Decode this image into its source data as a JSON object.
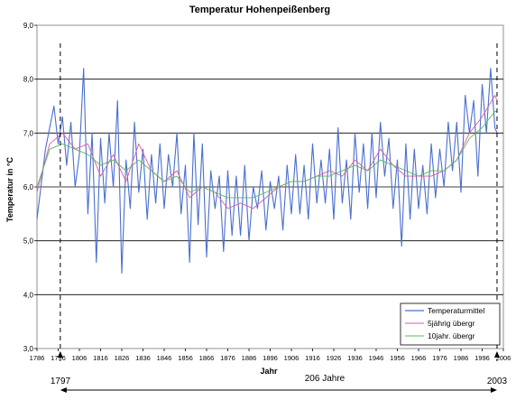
{
  "chart_data": {
    "type": "line",
    "title": "Temperatur  Hohenpeißenberg",
    "xlabel": "Jahr",
    "ylabel": "Temperatur in °C",
    "ylim": [
      3.0,
      9.0
    ],
    "xlim": [
      1786,
      2006
    ],
    "y_ticks": [
      "3,0",
      "4,0",
      "5,0",
      "6,0",
      "7,0",
      "8,0",
      "9,0"
    ],
    "x_ticks": [
      "1786",
      "1796",
      "1806",
      "1816",
      "1826",
      "1836",
      "1846",
      "1856",
      "1866",
      "1876",
      "1886",
      "1896",
      "1906",
      "1916",
      "1926",
      "1936",
      "1946",
      "1956",
      "1966",
      "1976",
      "1986",
      "1996",
      "2006"
    ],
    "grid": "horizontal",
    "legend_position": "bottom-right",
    "colors": {
      "temperaturmittel": "#4a6fd0",
      "fuenfjahr": "#e05aa0",
      "zehnjahr": "#5ab85a"
    },
    "series": [
      {
        "name": "Temperaturmittel",
        "x": [
          1786,
          1790,
          1794,
          1796,
          1798,
          1800,
          1802,
          1804,
          1806,
          1808,
          1810,
          1812,
          1814,
          1816,
          1818,
          1820,
          1822,
          1824,
          1826,
          1828,
          1830,
          1832,
          1834,
          1836,
          1838,
          1840,
          1842,
          1844,
          1846,
          1848,
          1850,
          1852,
          1854,
          1856,
          1858,
          1860,
          1862,
          1864,
          1866,
          1868,
          1870,
          1872,
          1874,
          1876,
          1878,
          1880,
          1882,
          1884,
          1886,
          1888,
          1890,
          1892,
          1894,
          1896,
          1898,
          1900,
          1902,
          1904,
          1906,
          1908,
          1910,
          1912,
          1914,
          1916,
          1918,
          1920,
          1922,
          1924,
          1926,
          1928,
          1930,
          1932,
          1934,
          1936,
          1938,
          1940,
          1942,
          1944,
          1946,
          1948,
          1950,
          1952,
          1954,
          1956,
          1958,
          1960,
          1962,
          1964,
          1966,
          1968,
          1970,
          1972,
          1974,
          1976,
          1978,
          1980,
          1982,
          1984,
          1986,
          1988,
          1990,
          1992,
          1994,
          1996,
          1998,
          2000,
          2002,
          2003
        ],
        "values": [
          5.4,
          6.7,
          7.5,
          6.8,
          7.3,
          6.4,
          7.2,
          6.0,
          6.6,
          8.2,
          5.5,
          7.0,
          4.6,
          6.9,
          5.7,
          7.0,
          6.0,
          7.6,
          4.4,
          6.5,
          5.6,
          7.2,
          5.9,
          6.7,
          5.4,
          6.6,
          5.7,
          6.8,
          5.6,
          6.6,
          6.0,
          7.0,
          5.5,
          6.4,
          4.6,
          7.0,
          5.3,
          6.8,
          4.7,
          6.3,
          5.6,
          6.2,
          4.8,
          6.3,
          5.1,
          6.2,
          5.1,
          6.4,
          5.0,
          6.0,
          5.6,
          6.3,
          5.2,
          6.1,
          5.6,
          6.2,
          5.2,
          6.4,
          5.5,
          6.6,
          5.5,
          6.4,
          5.4,
          6.8,
          5.7,
          6.5,
          5.7,
          6.7,
          5.4,
          7.1,
          5.7,
          6.5,
          5.4,
          7.0,
          5.9,
          6.8,
          5.6,
          7.0,
          5.8,
          7.2,
          6.2,
          6.9,
          5.6,
          6.5,
          4.9,
          6.8,
          5.4,
          6.7,
          5.6,
          6.4,
          5.5,
          6.8,
          5.8,
          6.7,
          6.0,
          7.2,
          6.3,
          7.2,
          5.9,
          7.7,
          7.0,
          7.6,
          6.2,
          7.9,
          7.0,
          8.2,
          7.1,
          7.0
        ]
      },
      {
        "name": "5jährig übergr",
        "x": [
          1786,
          1792,
          1798,
          1804,
          1810,
          1816,
          1822,
          1828,
          1834,
          1840,
          1846,
          1852,
          1858,
          1864,
          1870,
          1876,
          1882,
          1888,
          1894,
          1900,
          1906,
          1912,
          1918,
          1924,
          1930,
          1936,
          1942,
          1948,
          1954,
          1960,
          1966,
          1972,
          1978,
          1984,
          1990,
          1996,
          2002,
          2003
        ],
        "values": [
          5.9,
          6.8,
          7.0,
          6.7,
          6.8,
          6.2,
          6.6,
          6.1,
          6.8,
          6.3,
          6.1,
          6.3,
          5.8,
          6.0,
          5.9,
          5.6,
          5.7,
          5.6,
          5.8,
          6.0,
          6.1,
          6.1,
          6.2,
          6.3,
          6.2,
          6.5,
          6.3,
          6.7,
          6.4,
          6.2,
          6.2,
          6.2,
          6.3,
          6.5,
          7.0,
          7.3,
          7.7,
          7.6
        ]
      },
      {
        "name": "10jahr. übergr",
        "x": [
          1786,
          1792,
          1798,
          1804,
          1810,
          1816,
          1822,
          1828,
          1834,
          1840,
          1846,
          1852,
          1858,
          1864,
          1870,
          1876,
          1882,
          1888,
          1894,
          1900,
          1906,
          1912,
          1918,
          1924,
          1930,
          1936,
          1942,
          1948,
          1954,
          1960,
          1966,
          1972,
          1978,
          1984,
          1990,
          1996,
          2002,
          2003
        ],
        "values": [
          6.0,
          6.7,
          6.8,
          6.7,
          6.6,
          6.4,
          6.5,
          6.3,
          6.5,
          6.3,
          6.1,
          6.2,
          5.9,
          6.0,
          5.9,
          5.8,
          5.8,
          5.8,
          5.9,
          6.0,
          6.1,
          6.1,
          6.2,
          6.2,
          6.3,
          6.4,
          6.3,
          6.5,
          6.4,
          6.3,
          6.2,
          6.3,
          6.3,
          6.5,
          6.9,
          7.1,
          7.4,
          7.4
        ]
      }
    ],
    "annotations": {
      "start_year": "1797",
      "end_year": "2003",
      "span_label": "206 Jahre"
    }
  }
}
